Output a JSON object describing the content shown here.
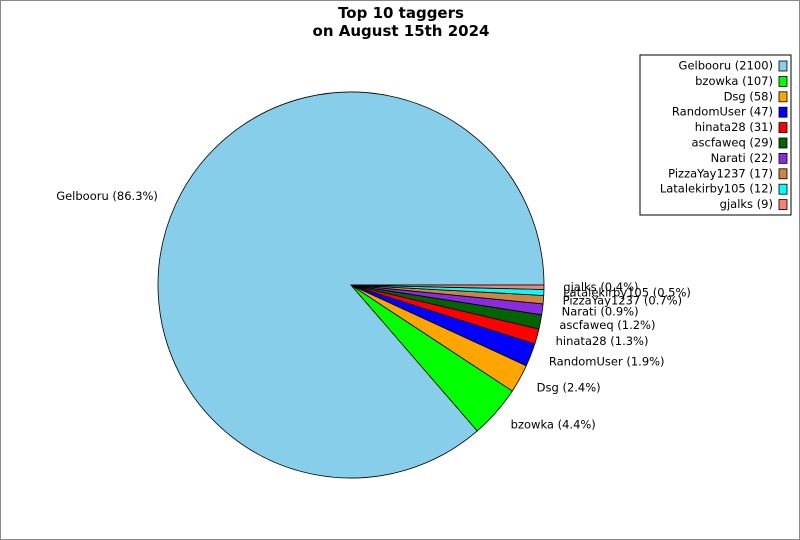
{
  "chart_data": {
    "type": "pie",
    "title": "Top 10 taggers\non August 15th 2024",
    "values": [
      2100,
      107,
      58,
      47,
      31,
      29,
      22,
      17,
      12,
      9
    ],
    "legend_labels": [
      "Gelbooru (2100)",
      "bzowka (107)",
      "Dsg (58)",
      "RandomUser (47)",
      "hinata28 (31)",
      "ascfaweq (29)",
      "Narati (22)",
      "PizzaYay1237 (17)",
      "Latalekirby105 (12)",
      "gjalks (9)"
    ],
    "slice_labels": [
      "Gelbooru (86.3%)",
      "bzowka (4.4%)",
      "Dsg (2.4%)",
      "RandomUser (1.9%)",
      "hinata28 (1.3%)",
      "ascfaweq (1.2%)",
      "Narati (0.9%)",
      "PizzaYay1237 (0.7%)",
      "Latalekirby105 (0.5%)",
      "gjalks (0.4%)"
    ],
    "colors": [
      "#87ceeb",
      "#00ff00",
      "#ffa500",
      "#0000ff",
      "#ff0000",
      "#006400",
      "#8a2be2",
      "#cd853f",
      "#00ffff",
      "#fa8072"
    ],
    "legend": "upper right"
  }
}
